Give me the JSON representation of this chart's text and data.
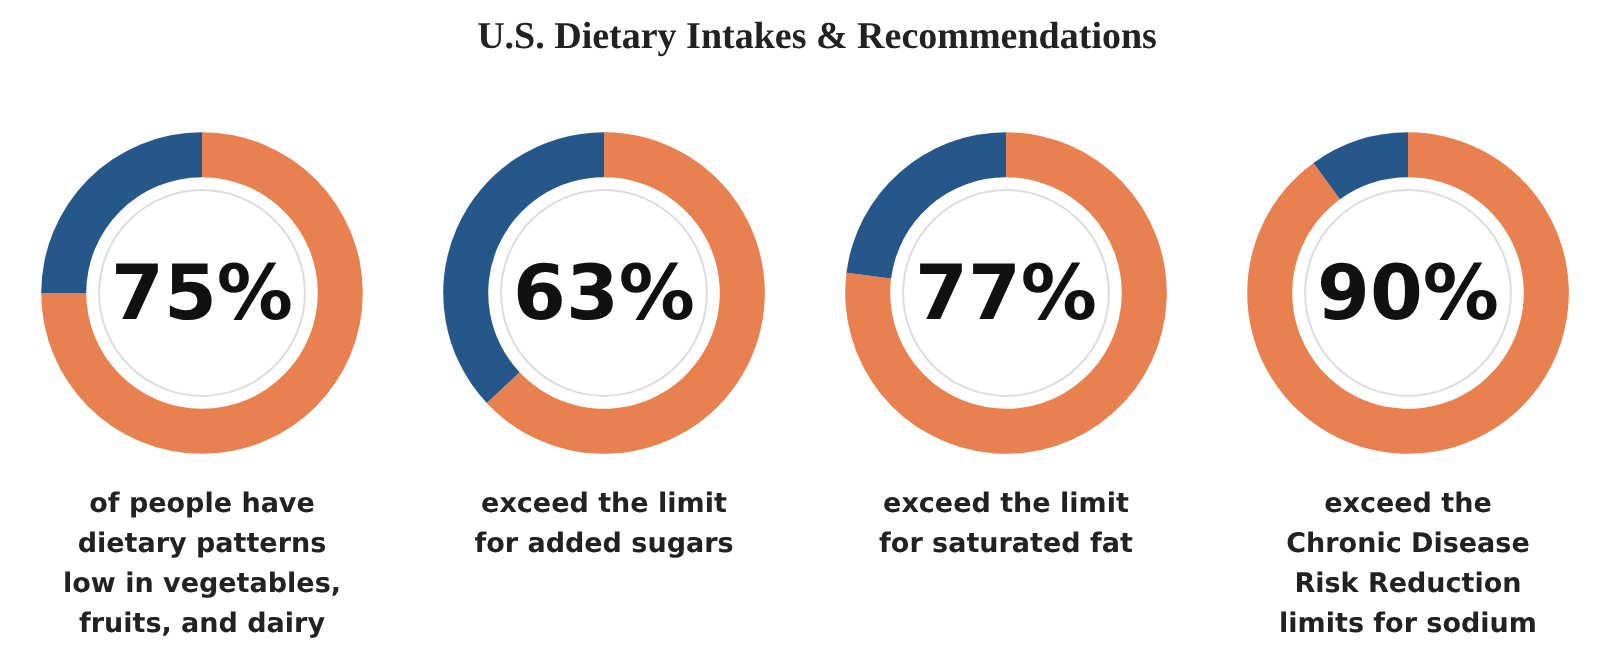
{
  "chart_data": [
    {
      "type": "donut",
      "title": "U.S. Dietary Intakes & Recommendations",
      "categories": [
        null,
        null
      ],
      "values": [
        75,
        25
      ],
      "colors": [
        "#e8804f",
        "#26578a"
      ],
      "value_labels": [
        "75%",
        null
      ],
      "annotations": [
        "of people have\ndietary patterns\nlow in vegetables,\nfruits, and dairy"
      ]
    },
    {
      "type": "donut",
      "categories": [
        null,
        null
      ],
      "values": [
        63,
        37
      ],
      "colors": [
        "#e8804f",
        "#26578a"
      ],
      "value_labels": [
        "63%",
        null
      ],
      "annotations": [
        "exceed the limit\nfor added sugars"
      ]
    },
    {
      "type": "donut",
      "categories": [
        null,
        null
      ],
      "values": [
        77,
        23
      ],
      "colors": [
        "#e8804f",
        "#26578a"
      ],
      "value_labels": [
        "77%",
        null
      ],
      "annotations": [
        "exceed the limit\nfor saturated fat"
      ]
    },
    {
      "type": "donut",
      "categories": [
        null,
        null
      ],
      "values": [
        90,
        10
      ],
      "colors": [
        "#e8804f",
        "#26578a"
      ],
      "value_labels": [
        "90%",
        null
      ],
      "annotations": [
        "exceed the\nChronic Disease\nRisk Reduction\nlimits for sodium"
      ]
    }
  ]
}
